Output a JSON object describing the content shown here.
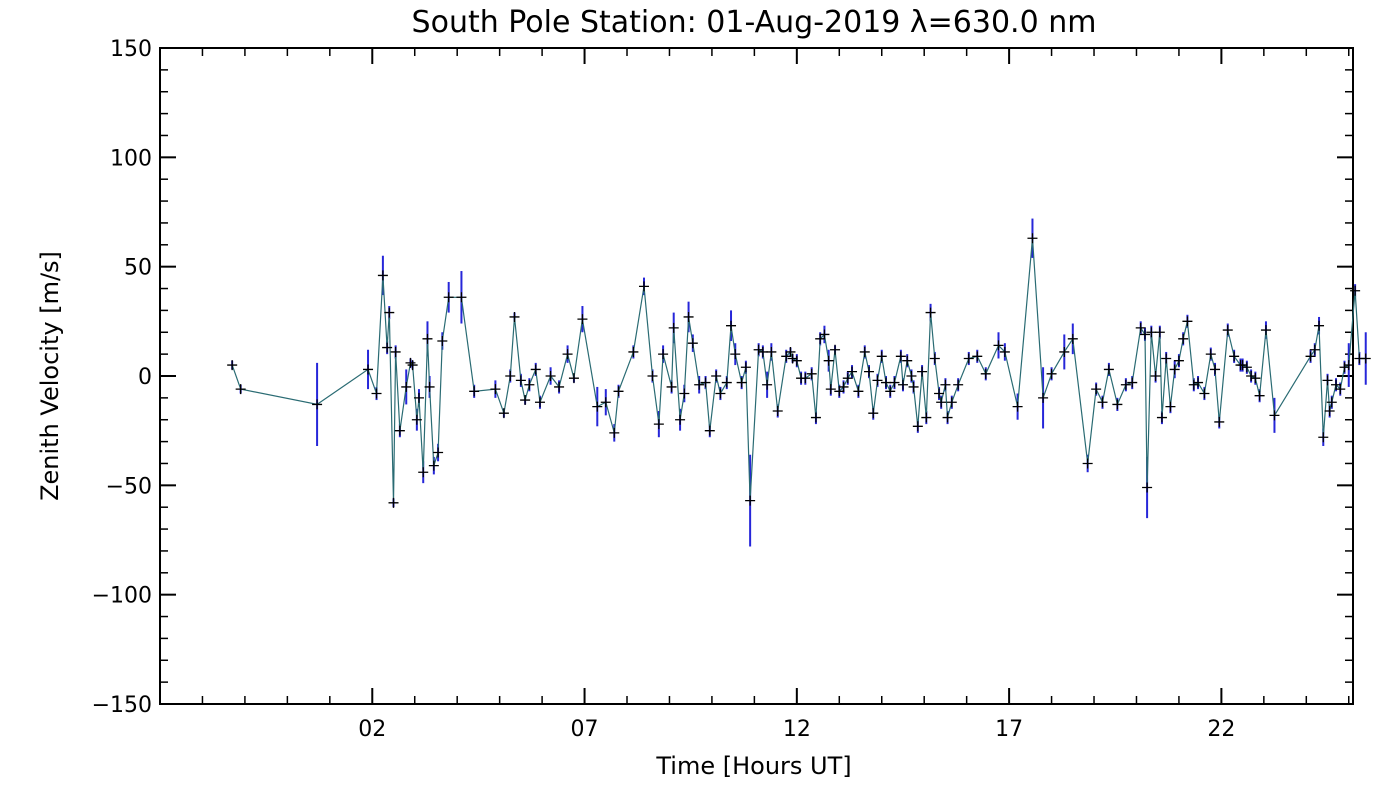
{
  "chart_data": {
    "type": "line",
    "title": "South Pole Station: 01-Aug-2019 λ=630.0 nm",
    "xlabel": "Time [Hours UT]",
    "ylabel": "Zenith Velocity [m/s]",
    "xlim": [
      -3.0,
      25.1
    ],
    "ylim": [
      -150,
      150
    ],
    "x_ticks": [
      2,
      7,
      12,
      17,
      22
    ],
    "x_tick_labels": [
      "02",
      "07",
      "12",
      "17",
      "22"
    ],
    "y_ticks": [
      -150,
      -100,
      -50,
      0,
      50,
      100,
      150
    ],
    "y_tick_labels": [
      "−150",
      "−100",
      "−50",
      "0",
      "50",
      "100",
      "150"
    ],
    "line_color": "#2a6b73",
    "errorbar_color": "#2626d9",
    "marker_color": "#000000",
    "series": [
      {
        "name": "Zenith velocity",
        "points": [
          [
            -1.3,
            5,
            2
          ],
          [
            -1.1,
            -6,
            2
          ],
          [
            0.7,
            -13,
            19
          ],
          [
            1.9,
            3,
            9
          ],
          [
            2.1,
            -8,
            3
          ],
          [
            2.25,
            46,
            9
          ],
          [
            2.35,
            13,
            3
          ],
          [
            2.4,
            29,
            3
          ],
          [
            2.5,
            -58,
            2
          ],
          [
            2.55,
            11,
            3
          ],
          [
            2.65,
            -25,
            3
          ],
          [
            2.8,
            -5,
            8
          ],
          [
            2.9,
            6,
            2
          ],
          [
            2.95,
            5,
            2
          ],
          [
            3.05,
            -20,
            5
          ],
          [
            3.1,
            -10,
            4
          ],
          [
            3.2,
            -44,
            5
          ],
          [
            3.3,
            17,
            8
          ],
          [
            3.35,
            -5,
            5
          ],
          [
            3.45,
            -41,
            4
          ],
          [
            3.55,
            -35,
            4
          ],
          [
            3.65,
            16,
            4
          ],
          [
            3.8,
            36,
            7
          ],
          [
            4.1,
            36,
            12
          ],
          [
            4.4,
            -7,
            3
          ],
          [
            4.9,
            -6,
            4
          ],
          [
            5.1,
            -17,
            2
          ],
          [
            5.25,
            0,
            3
          ],
          [
            5.35,
            27,
            2
          ],
          [
            5.5,
            -2,
            3
          ],
          [
            5.6,
            -11,
            2
          ],
          [
            5.7,
            -4,
            3
          ],
          [
            5.85,
            3,
            3
          ],
          [
            5.95,
            -12,
            3
          ],
          [
            6.2,
            0,
            4
          ],
          [
            6.4,
            -5,
            3
          ],
          [
            6.6,
            10,
            4
          ],
          [
            6.75,
            -1,
            2
          ],
          [
            6.95,
            26,
            6
          ],
          [
            7.3,
            -14,
            9
          ],
          [
            7.5,
            -12,
            6
          ],
          [
            7.7,
            -26,
            4
          ],
          [
            7.8,
            -7,
            3
          ],
          [
            8.15,
            11,
            3
          ],
          [
            8.4,
            41,
            4
          ],
          [
            8.6,
            0,
            3
          ],
          [
            8.75,
            -22,
            6
          ],
          [
            8.85,
            10,
            4
          ],
          [
            9.05,
            -5,
            3
          ],
          [
            9.1,
            22,
            7
          ],
          [
            9.25,
            -20,
            5
          ],
          [
            9.35,
            -8,
            4
          ],
          [
            9.45,
            27,
            7
          ],
          [
            9.55,
            15,
            4
          ],
          [
            9.7,
            -4,
            4
          ],
          [
            9.85,
            -3,
            3
          ],
          [
            9.95,
            -25,
            3
          ],
          [
            10.1,
            0,
            3
          ],
          [
            10.2,
            -8,
            3
          ],
          [
            10.35,
            -3,
            3
          ],
          [
            10.45,
            23,
            7
          ],
          [
            10.55,
            10,
            5
          ],
          [
            10.7,
            -3,
            3
          ],
          [
            10.8,
            4,
            3
          ],
          [
            10.9,
            -57,
            21
          ],
          [
            11.1,
            12,
            3
          ],
          [
            11.2,
            11,
            3
          ],
          [
            11.3,
            -4,
            6
          ],
          [
            11.4,
            11,
            4
          ],
          [
            11.55,
            -16,
            3
          ],
          [
            11.75,
            9,
            3
          ],
          [
            11.85,
            11,
            2
          ],
          [
            11.9,
            8,
            2
          ],
          [
            12.0,
            7,
            3
          ],
          [
            12.1,
            -1,
            3
          ],
          [
            12.2,
            -1,
            3
          ],
          [
            12.35,
            1,
            3
          ],
          [
            12.45,
            -19,
            3
          ],
          [
            12.55,
            17,
            3
          ],
          [
            12.65,
            19,
            4
          ],
          [
            12.75,
            7,
            5
          ],
          [
            12.8,
            -6,
            3
          ],
          [
            12.9,
            12,
            2
          ],
          [
            13.0,
            -7,
            3
          ],
          [
            13.1,
            -5,
            3
          ],
          [
            13.2,
            -1,
            3
          ],
          [
            13.3,
            2,
            3
          ],
          [
            13.45,
            -7,
            3
          ],
          [
            13.6,
            11,
            3
          ],
          [
            13.7,
            2,
            3
          ],
          [
            13.8,
            -17,
            3
          ],
          [
            13.9,
            -2,
            3
          ],
          [
            14.0,
            9,
            3
          ],
          [
            14.1,
            -3,
            3
          ],
          [
            14.2,
            -7,
            3
          ],
          [
            14.3,
            -3,
            3
          ],
          [
            14.45,
            9,
            3
          ],
          [
            14.5,
            -4,
            3
          ],
          [
            14.6,
            7,
            3
          ],
          [
            14.7,
            0,
            3
          ],
          [
            14.75,
            -5,
            3
          ],
          [
            14.85,
            -23,
            3
          ],
          [
            14.95,
            2,
            3
          ],
          [
            15.05,
            -19,
            3
          ],
          [
            15.15,
            29,
            4
          ],
          [
            15.25,
            8,
            3
          ],
          [
            15.35,
            -8,
            3
          ],
          [
            15.4,
            -12,
            3
          ],
          [
            15.5,
            -4,
            3
          ],
          [
            15.55,
            -19,
            3
          ],
          [
            15.65,
            -12,
            3
          ],
          [
            15.8,
            -4,
            3
          ],
          [
            16.05,
            8,
            3
          ],
          [
            16.25,
            9,
            3
          ],
          [
            16.45,
            1,
            3
          ],
          [
            16.75,
            14,
            6
          ],
          [
            16.9,
            11,
            4
          ],
          [
            17.2,
            -14,
            6
          ],
          [
            17.55,
            63,
            9
          ],
          [
            17.8,
            -10,
            14
          ],
          [
            18.0,
            1,
            3
          ],
          [
            18.3,
            11,
            8
          ],
          [
            18.5,
            17,
            7
          ],
          [
            18.85,
            -40,
            4
          ],
          [
            19.05,
            -6,
            3
          ],
          [
            19.2,
            -12,
            3
          ],
          [
            19.35,
            3,
            3
          ],
          [
            19.55,
            -13,
            3
          ],
          [
            19.75,
            -4,
            3
          ],
          [
            19.9,
            -3,
            3
          ],
          [
            20.1,
            22,
            3
          ],
          [
            20.2,
            19,
            3
          ],
          [
            20.25,
            -51,
            14
          ],
          [
            20.35,
            20,
            3
          ],
          [
            20.45,
            0,
            3
          ],
          [
            20.55,
            20,
            3
          ],
          [
            20.6,
            -19,
            3
          ],
          [
            20.7,
            8,
            3
          ],
          [
            20.8,
            -14,
            3
          ],
          [
            20.9,
            3,
            4
          ],
          [
            21.0,
            7,
            3
          ],
          [
            21.1,
            17,
            3
          ],
          [
            21.2,
            25,
            3
          ],
          [
            21.35,
            -4,
            3
          ],
          [
            21.45,
            -3,
            3
          ],
          [
            21.6,
            -8,
            3
          ],
          [
            21.75,
            10,
            3
          ],
          [
            21.85,
            3,
            3
          ],
          [
            21.95,
            -21,
            3
          ],
          [
            22.15,
            21,
            3
          ],
          [
            22.3,
            9,
            3
          ],
          [
            22.45,
            5,
            3
          ],
          [
            22.5,
            5,
            3
          ],
          [
            22.6,
            4,
            3
          ],
          [
            22.7,
            0,
            3
          ],
          [
            22.8,
            -1,
            3
          ],
          [
            22.9,
            -9,
            3
          ],
          [
            23.05,
            21,
            4
          ],
          [
            23.25,
            -18,
            8
          ],
          [
            24.1,
            9,
            3
          ],
          [
            24.2,
            12,
            3
          ],
          [
            24.3,
            23,
            4
          ],
          [
            24.4,
            -28,
            4
          ],
          [
            24.5,
            -2,
            3
          ],
          [
            24.55,
            -16,
            3
          ],
          [
            24.6,
            -12,
            3
          ],
          [
            24.7,
            -4,
            3
          ],
          [
            24.8,
            -6,
            3
          ],
          [
            24.9,
            4,
            3
          ],
          [
            25.0,
            5,
            10
          ],
          [
            25.15,
            39,
            3
          ],
          [
            25.25,
            8,
            3
          ],
          [
            25.4,
            8,
            12
          ]
        ]
      }
    ]
  }
}
